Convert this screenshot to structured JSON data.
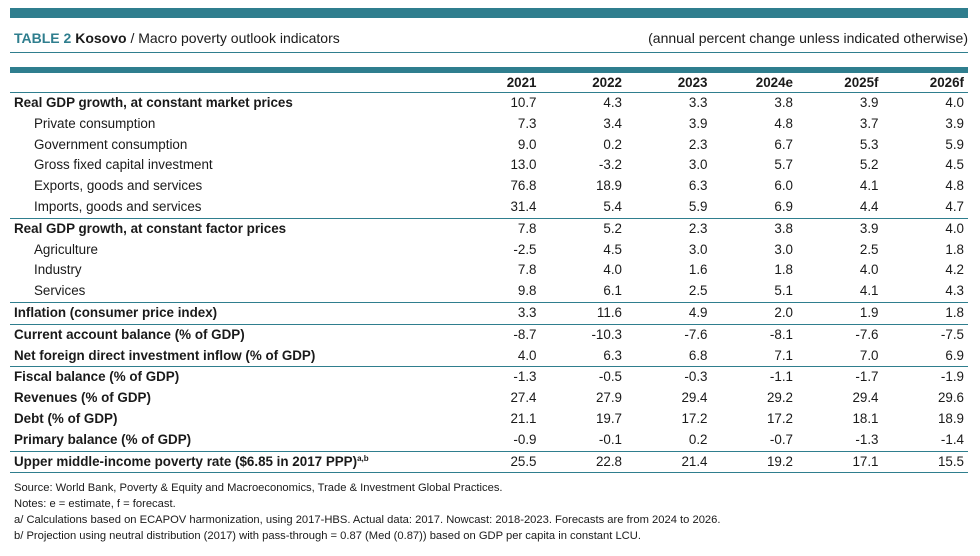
{
  "header": {
    "table_label": "TABLE 2",
    "country": "Kosovo",
    "subtitle": "/ Macro poverty outlook indicators",
    "units_note": "(annual percent change unless indicated otherwise)"
  },
  "table": {
    "years": [
      "2021",
      "2022",
      "2023",
      "2024e",
      "2025f",
      "2026f"
    ],
    "rows": [
      {
        "label": "Real GDP growth, at constant market prices",
        "style": "main",
        "values": [
          "10.7",
          "4.3",
          "3.3",
          "3.8",
          "3.9",
          "4.0"
        ]
      },
      {
        "label": "Private consumption",
        "style": "sub",
        "values": [
          "7.3",
          "3.4",
          "3.9",
          "4.8",
          "3.7",
          "3.9"
        ]
      },
      {
        "label": "Government consumption",
        "style": "sub",
        "values": [
          "9.0",
          "0.2",
          "2.3",
          "6.7",
          "5.3",
          "5.9"
        ]
      },
      {
        "label": "Gross fixed capital investment",
        "style": "sub",
        "values": [
          "13.0",
          "-3.2",
          "3.0",
          "5.7",
          "5.2",
          "4.5"
        ]
      },
      {
        "label": "Exports, goods and services",
        "style": "sub",
        "values": [
          "76.8",
          "18.9",
          "6.3",
          "6.0",
          "4.1",
          "4.8"
        ]
      },
      {
        "label": "Imports, goods and services",
        "style": "sub",
        "values": [
          "31.4",
          "5.4",
          "5.9",
          "6.9",
          "4.4",
          "4.7"
        ]
      },
      {
        "label": "Real GDP growth, at constant factor prices",
        "style": "main",
        "sep": true,
        "values": [
          "7.8",
          "5.2",
          "2.3",
          "3.8",
          "3.9",
          "4.0"
        ]
      },
      {
        "label": "Agriculture",
        "style": "sub",
        "values": [
          "-2.5",
          "4.5",
          "3.0",
          "3.0",
          "2.5",
          "1.8"
        ]
      },
      {
        "label": "Industry",
        "style": "sub",
        "values": [
          "7.8",
          "4.0",
          "1.6",
          "1.8",
          "4.0",
          "4.2"
        ]
      },
      {
        "label": "Services",
        "style": "sub",
        "values": [
          "9.8",
          "6.1",
          "2.5",
          "5.1",
          "4.1",
          "4.3"
        ]
      },
      {
        "label": "Inflation (consumer price index)",
        "style": "main",
        "sep": true,
        "values": [
          "3.3",
          "11.6",
          "4.9",
          "2.0",
          "1.9",
          "1.8"
        ]
      },
      {
        "label": "Current account balance (% of GDP)",
        "style": "main",
        "sep": true,
        "values": [
          "-8.7",
          "-10.3",
          "-7.6",
          "-8.1",
          "-7.6",
          "-7.5"
        ]
      },
      {
        "label": "Net foreign direct investment inflow (% of GDP)",
        "style": "main",
        "values": [
          "4.0",
          "6.3",
          "6.8",
          "7.1",
          "7.0",
          "6.9"
        ]
      },
      {
        "label": "Fiscal balance (% of GDP)",
        "style": "main",
        "sep": true,
        "values": [
          "-1.3",
          "-0.5",
          "-0.3",
          "-1.1",
          "-1.7",
          "-1.9"
        ]
      },
      {
        "label": "Revenues (% of GDP)",
        "style": "main",
        "values": [
          "27.4",
          "27.9",
          "29.4",
          "29.2",
          "29.4",
          "29.6"
        ]
      },
      {
        "label": "Debt (% of GDP)",
        "style": "main",
        "values": [
          "21.1",
          "19.7",
          "17.2",
          "17.2",
          "18.1",
          "18.9"
        ]
      },
      {
        "label": "Primary balance (% of GDP)",
        "style": "main",
        "values": [
          "-0.9",
          "-0.1",
          "0.2",
          "-0.7",
          "-1.3",
          "-1.4"
        ]
      },
      {
        "label": "Upper middle-income poverty rate ($6.85 in 2017 PPP)",
        "sup": "a,b",
        "style": "main",
        "sep": true,
        "last": true,
        "values": [
          "25.5",
          "22.8",
          "21.4",
          "19.2",
          "17.1",
          "15.5"
        ]
      }
    ]
  },
  "notes": [
    "Source: World Bank, Poverty & Equity and Macroeconomics, Trade & Investment Global Practices.",
    "Notes: e = estimate, f = forecast.",
    "a/ Calculations based on ECAPOV harmonization, using 2017-HBS. Actual data: 2017. Nowcast: 2018-2023. Forecasts are from 2024 to 2026.",
    "b/ Projection using neutral distribution (2017) with pass-through = 0.87 (Med (0.87)) based on GDP per capita in constant LCU."
  ]
}
